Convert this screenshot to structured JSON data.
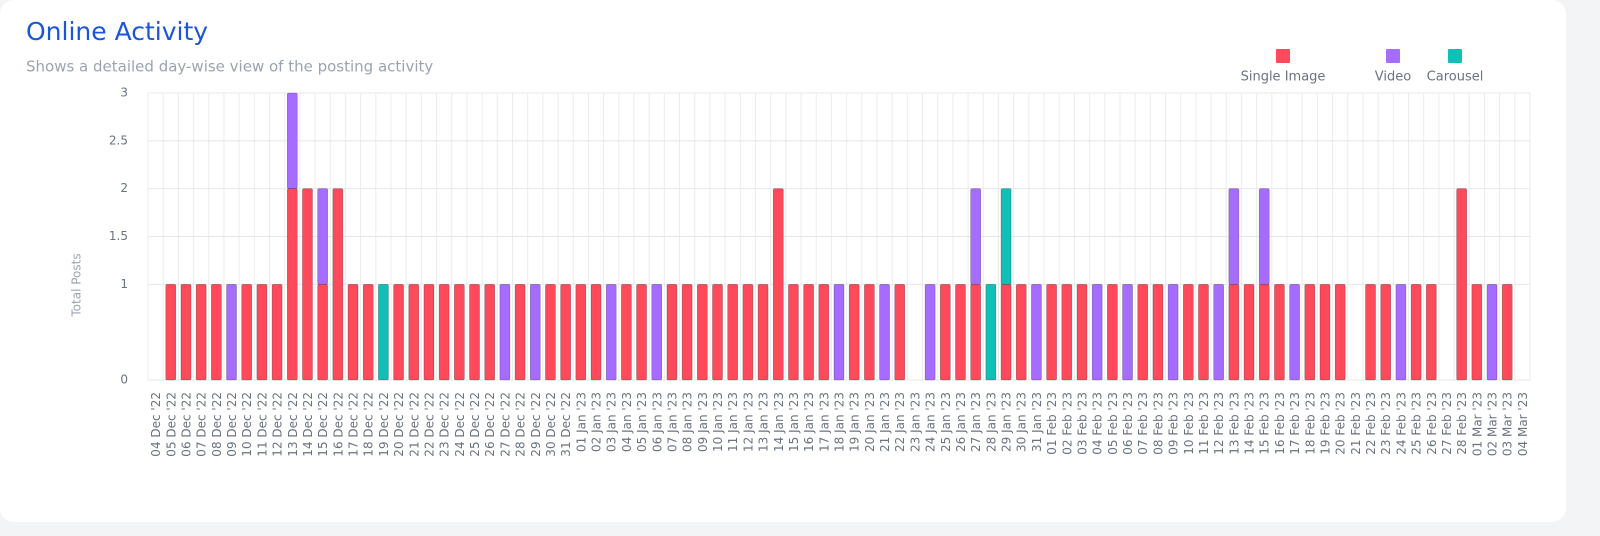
{
  "chart_data": {
    "type": "stacked-bar",
    "title": "Online Activity",
    "subtitle": "Shows a detailed day-wise view of the posting activity",
    "ylabel": "Total Posts",
    "categories": [
      "04 Dec '22",
      "05 Dec '22",
      "06 Dec '22",
      "07 Dec '22",
      "08 Dec '22",
      "09 Dec '22",
      "10 Dec '22",
      "11 Dec '22",
      "12 Dec '22",
      "13 Dec '22",
      "14 Dec '22",
      "15 Dec '22",
      "16 Dec '22",
      "17 Dec '22",
      "18 Dec '22",
      "19 Dec '22",
      "20 Dec '22",
      "21 Dec '22",
      "22 Dec '22",
      "23 Dec '22",
      "24 Dec '22",
      "25 Dec '22",
      "26 Dec '22",
      "27 Dec '22",
      "28 Dec '22",
      "29 Dec '22",
      "30 Dec '22",
      "31 Dec '22",
      "01 Jan '23",
      "02 Jan '23",
      "03 Jan '23",
      "04 Jan '23",
      "05 Jan '23",
      "06 Jan '23",
      "07 Jan '23",
      "08 Jan '23",
      "09 Jan '23",
      "10 Jan '23",
      "11 Jan '23",
      "12 Jan '23",
      "13 Jan '23",
      "14 Jan '23",
      "15 Jan '23",
      "16 Jan '23",
      "17 Jan '23",
      "18 Jan '23",
      "19 Jan '23",
      "20 Jan '23",
      "21 Jan '23",
      "22 Jan '23",
      "23 Jan '23",
      "24 Jan '23",
      "25 Jan '23",
      "26 Jan '23",
      "27 Jan '23",
      "28 Jan '23",
      "29 Jan '23",
      "30 Jan '23",
      "31 Jan '23",
      "01 Feb '23",
      "02 Feb '23",
      "03 Feb '23",
      "04 Feb '23",
      "05 Feb '23",
      "06 Feb '23",
      "07 Feb '23",
      "08 Feb '23",
      "09 Feb '23",
      "10 Feb '23",
      "11 Feb '23",
      "12 Feb '23",
      "13 Feb '23",
      "14 Feb '23",
      "15 Feb '23",
      "16 Feb '23",
      "17 Feb '23",
      "18 Feb '23",
      "19 Feb '23",
      "20 Feb '23",
      "21 Feb '23",
      "22 Feb '23",
      "23 Feb '23",
      "24 Feb '23",
      "25 Feb '23",
      "26 Feb '23",
      "27 Feb '23",
      "28 Feb '23",
      "01 Mar '23",
      "02 Mar '23",
      "03 Mar '23",
      "04 Mar '23"
    ],
    "series": [
      {
        "name": "Single Image",
        "color": "#fe4a5a",
        "values": [
          0,
          1,
          1,
          1,
          1,
          0,
          1,
          1,
          1,
          2,
          2,
          1,
          2,
          1,
          1,
          0,
          1,
          1,
          1,
          1,
          1,
          1,
          1,
          0,
          1,
          0,
          1,
          1,
          1,
          1,
          0,
          1,
          1,
          0,
          1,
          1,
          1,
          1,
          1,
          1,
          1,
          2,
          1,
          1,
          1,
          0,
          1,
          1,
          0,
          1,
          0,
          0,
          1,
          1,
          1,
          0,
          1,
          1,
          0,
          1,
          1,
          1,
          0,
          1,
          0,
          1,
          1,
          0,
          1,
          1,
          0,
          1,
          1,
          1,
          1,
          0,
          1,
          1,
          1,
          0,
          1,
          1,
          0,
          1,
          1,
          0,
          2,
          1,
          0,
          1,
          0
        ]
      },
      {
        "name": "Video",
        "color": "#a66cff",
        "values": [
          0,
          0,
          0,
          0,
          0,
          1,
          0,
          0,
          0,
          1,
          0,
          1,
          0,
          0,
          0,
          0,
          0,
          0,
          0,
          0,
          0,
          0,
          0,
          1,
          0,
          1,
          0,
          0,
          0,
          0,
          1,
          0,
          0,
          1,
          0,
          0,
          0,
          0,
          0,
          0,
          0,
          0,
          0,
          0,
          0,
          1,
          0,
          0,
          1,
          0,
          0,
          1,
          0,
          0,
          1,
          0,
          0,
          0,
          1,
          0,
          0,
          0,
          1,
          0,
          1,
          0,
          0,
          1,
          0,
          0,
          1,
          1,
          0,
          1,
          0,
          1,
          0,
          0,
          0,
          0,
          0,
          0,
          1,
          0,
          0,
          0,
          0,
          0,
          1,
          0,
          0
        ]
      },
      {
        "name": "Carousel",
        "color": "#10bfb5",
        "values": [
          0,
          0,
          0,
          0,
          0,
          0,
          0,
          0,
          0,
          0,
          0,
          0,
          0,
          0,
          0,
          1,
          0,
          0,
          0,
          0,
          0,
          0,
          0,
          0,
          0,
          0,
          0,
          0,
          0,
          0,
          0,
          0,
          0,
          0,
          0,
          0,
          0,
          0,
          0,
          0,
          0,
          0,
          0,
          0,
          0,
          0,
          0,
          0,
          0,
          0,
          0,
          0,
          0,
          0,
          0,
          1,
          1,
          0,
          0,
          0,
          0,
          0,
          0,
          0,
          0,
          0,
          0,
          0,
          0,
          0,
          0,
          0,
          0,
          0,
          0,
          0,
          0,
          0,
          0,
          0,
          0,
          0,
          0,
          0,
          0,
          0,
          0,
          0,
          0,
          0,
          0
        ]
      }
    ],
    "ylim": [
      0,
      3
    ],
    "yticks": [
      0,
      1,
      1.5,
      2,
      2.5,
      3
    ],
    "grid": true,
    "legend": "top-right"
  }
}
